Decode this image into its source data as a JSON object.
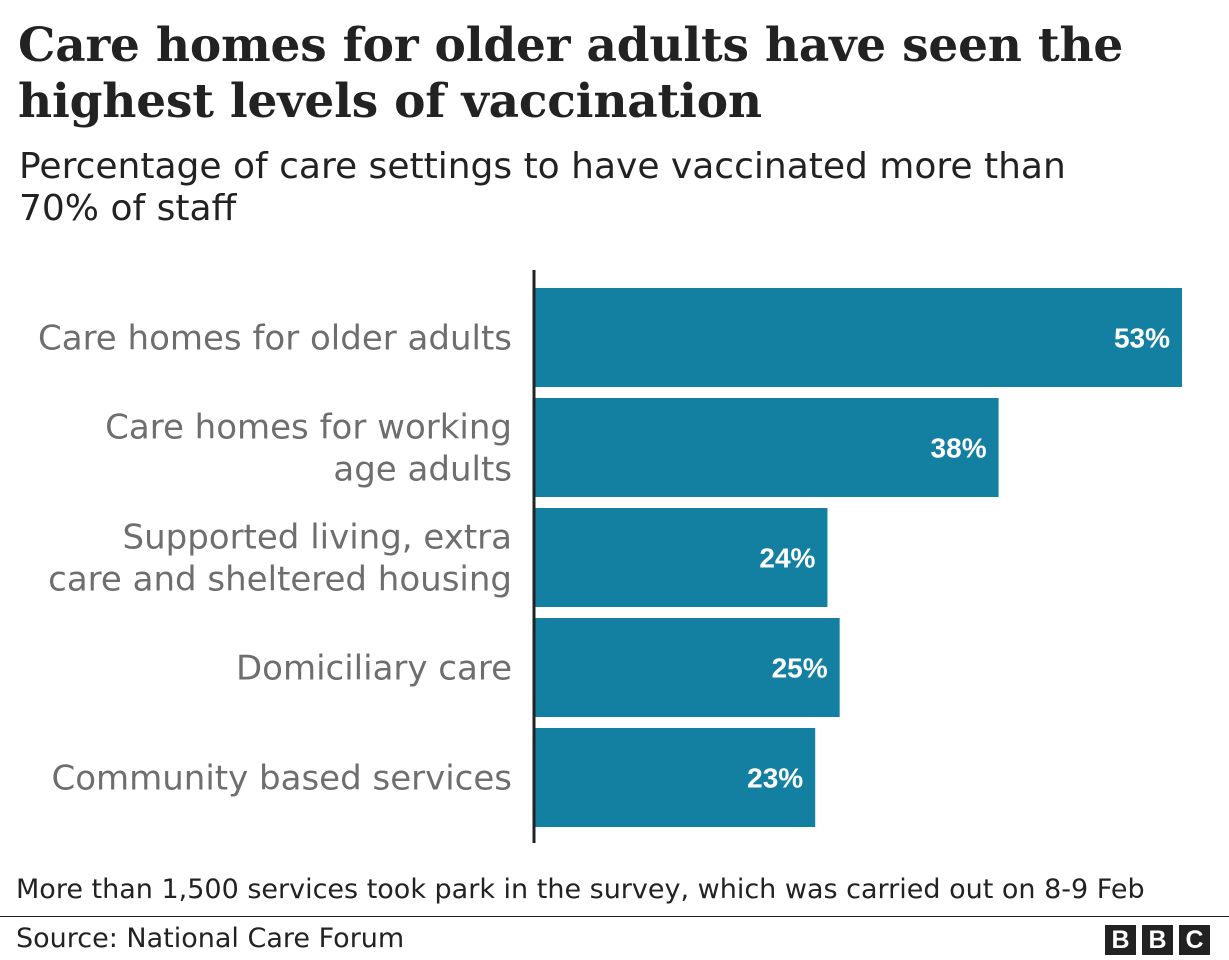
{
  "title": "Care homes for older adults have seen the highest levels of vaccination",
  "subtitle": "Percentage of care settings to have vaccinated more than 70% of staff",
  "note": "More than 1,500 services took park in the survey, which was carried out on 8-9 Feb",
  "source": "Source: National Care Forum",
  "logo": {
    "letters": [
      "B",
      "B",
      "C"
    ]
  },
  "colors": {
    "bar": "#1380a1",
    "axis": "#222222",
    "label": "#6e6e6e"
  },
  "chart_data": {
    "type": "bar",
    "orientation": "horizontal",
    "categories": [
      [
        "Care homes for older adults"
      ],
      [
        "Care homes for working",
        "age adults"
      ],
      [
        "Supported living, extra",
        "care and sheltered housing"
      ],
      [
        "Domiciliary care"
      ],
      [
        "Community based services"
      ]
    ],
    "values": [
      53,
      38,
      24,
      25,
      23
    ],
    "value_labels": [
      "53%",
      "38%",
      "24%",
      "25%",
      "23%"
    ],
    "unit": "%",
    "xlim": [
      0,
      53
    ],
    "grid": false,
    "legend": "none"
  }
}
